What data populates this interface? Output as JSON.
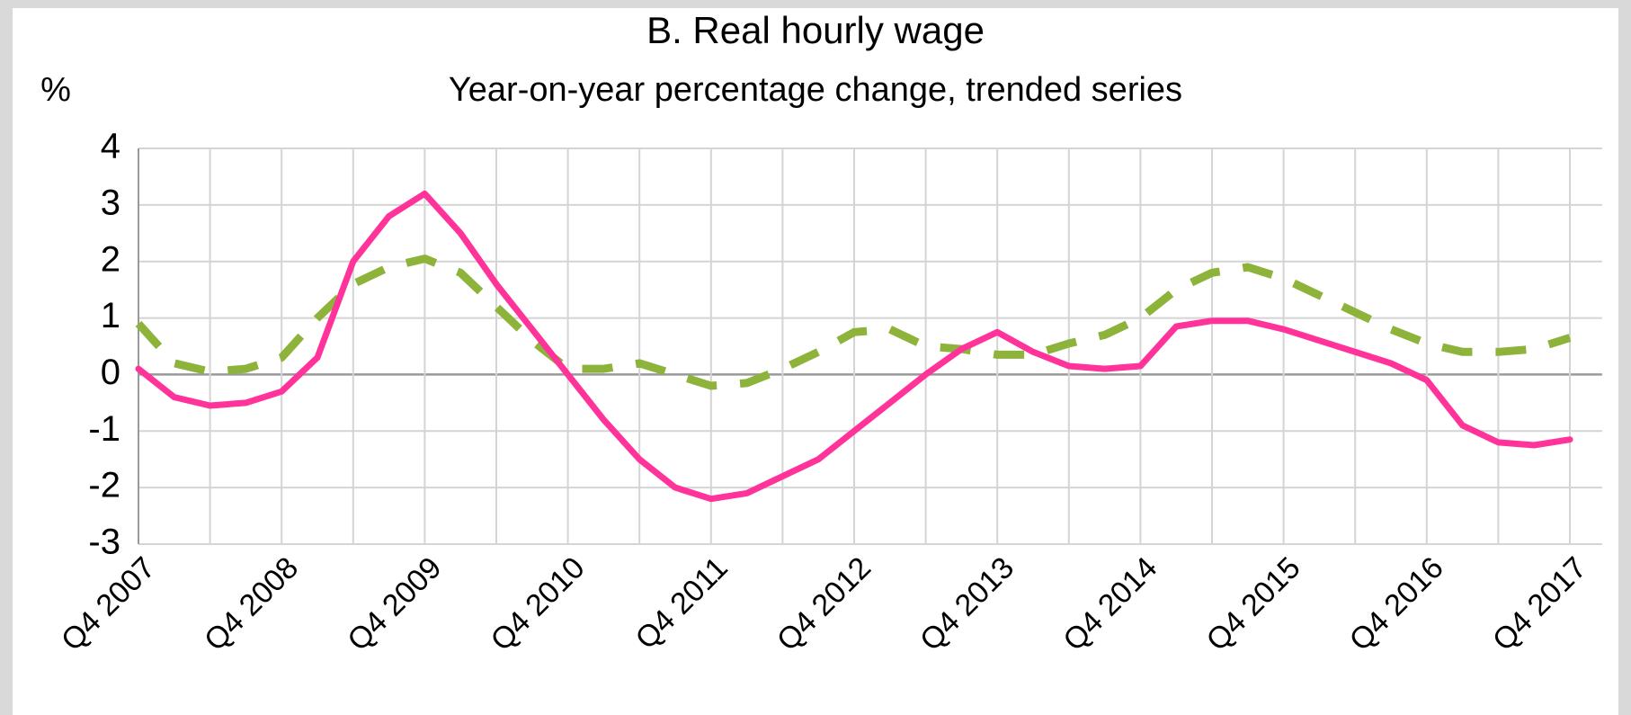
{
  "chart_data": {
    "type": "line",
    "title": "B. Real hourly wage",
    "subtitle": "Year-on-year percentage change, trended series",
    "y_unit": "%",
    "categories": [
      "Q4 2007",
      null,
      null,
      null,
      "Q4 2008",
      null,
      null,
      null,
      "Q4 2009",
      null,
      null,
      null,
      "Q4 2010",
      null,
      null,
      null,
      "Q4 2011",
      null,
      null,
      null,
      "Q4 2012",
      null,
      null,
      null,
      "Q4 2013",
      null,
      null,
      null,
      "Q4 2014",
      null,
      null,
      null,
      "Q4 2015",
      null,
      null,
      null,
      "Q4 2016",
      null,
      null,
      null,
      "Q4 2017"
    ],
    "series": [
      {
        "color": "#ff3399",
        "dashed": false,
        "values": [
          0.1,
          -0.4,
          -0.55,
          -0.5,
          -0.3,
          0.3,
          2.0,
          2.8,
          3.2,
          2.5,
          1.6,
          0.8,
          0.0,
          -0.8,
          -1.5,
          -2.0,
          -2.2,
          -2.1,
          -1.8,
          -1.5,
          -1.0,
          -0.5,
          0.0,
          0.45,
          0.75,
          0.4,
          0.15,
          0.1,
          0.15,
          0.85,
          0.95,
          0.95,
          0.8,
          0.6,
          0.4,
          0.2,
          -0.1,
          -0.9,
          -1.2,
          -1.25,
          -1.15
        ]
      },
      {
        "color": "#8db33a",
        "dashed": true,
        "values": [
          0.9,
          0.2,
          0.05,
          0.1,
          0.3,
          1.0,
          1.6,
          1.9,
          2.05,
          1.8,
          1.2,
          0.6,
          0.1,
          0.1,
          0.2,
          0.0,
          -0.2,
          -0.15,
          0.1,
          0.4,
          0.75,
          0.8,
          0.5,
          0.45,
          0.35,
          0.35,
          0.55,
          0.7,
          1.0,
          1.5,
          1.8,
          1.9,
          1.7,
          1.4,
          1.1,
          0.8,
          0.55,
          0.4,
          0.4,
          0.45,
          0.65
        ]
      }
    ],
    "ylim": [
      -3,
      4
    ],
    "yticks": [
      -3,
      -2,
      -1,
      0,
      1,
      2,
      3,
      4
    ],
    "grid": true
  }
}
